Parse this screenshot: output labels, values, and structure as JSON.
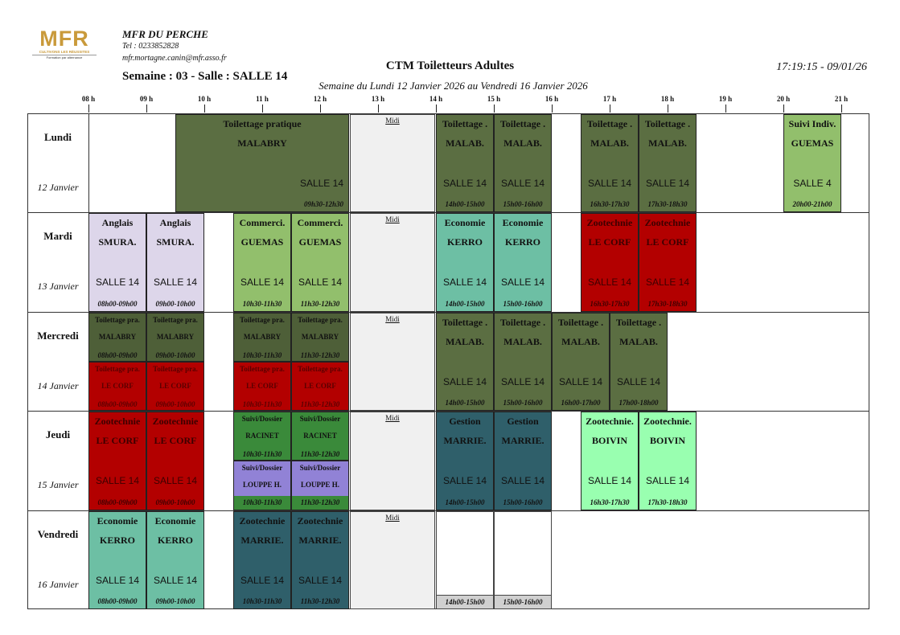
{
  "header": {
    "logo_text": "MFR",
    "logo_tagline": "CULTIVONS LES RÉUSSITES",
    "logo_subline": "Formation par alternance",
    "org_name": "MFR DU PERCHE",
    "tel": "Tel : 0233852828",
    "email": "mfr.mortagne.canin@mfr.asso.fr",
    "week_line": "Semaine : 03 - Salle : SALLE 14",
    "title": "CTM Toiletteurs Adultes",
    "subtitle": "Semaine du Lundi 12 Janvier 2026 au Vendredi 16 Janvier 2026",
    "print_time": "17:19:15 - 09/01/26"
  },
  "hours": [
    "08 h",
    "09 h",
    "10 h",
    "11 h",
    "12 h",
    "13 h",
    "14 h",
    "15 h",
    "16 h",
    "17 h",
    "18 h",
    "19 h",
    "20 h",
    "21 h"
  ],
  "days": [
    {
      "name": "Lundi",
      "date": "12 Janvier"
    },
    {
      "name": "Mardi",
      "date": "13 Janvier"
    },
    {
      "name": "Mercredi",
      "date": "14 Janvier"
    },
    {
      "name": "Jeudi",
      "date": "15 Janvier"
    },
    {
      "name": "Vendredi",
      "date": "16 Janvier"
    }
  ],
  "midi_label": "Midi",
  "colors": {
    "toilettage": "#5b6e42",
    "toilettage_half": "#4e5f38",
    "rouge": "#b30000",
    "anglais": "#ddd6ea",
    "commerce": "#92bf6c",
    "economie": "#6dbfa4",
    "gestion": "#2f5f6a",
    "zootech_vert": "#99ffb0",
    "suivi_vert": "#3a8a3a",
    "suivi_violet": "#9182d6",
    "suivi_guemas": "#92bf6c"
  },
  "events": [
    {
      "day": 0,
      "start": 9.5,
      "end": 12.5,
      "half": "full",
      "title": "Toilettage pratique",
      "teacher": "MALABRY",
      "room": "SALLE 14",
      "time": "09h30-12h30",
      "color": "#5b6e42",
      "wide": true
    },
    {
      "day": 0,
      "start": 14,
      "end": 15,
      "half": "full",
      "title": "Toilettage .",
      "teacher": "MALAB.",
      "room": "SALLE 14",
      "time": "14h00-15h00",
      "color": "#5b6e42"
    },
    {
      "day": 0,
      "start": 15,
      "end": 16,
      "half": "full",
      "title": "Toilettage .",
      "teacher": "MALAB.",
      "room": "SALLE 14",
      "time": "15h00-16h00",
      "color": "#5b6e42"
    },
    {
      "day": 0,
      "start": 16.5,
      "end": 17.5,
      "half": "full",
      "title": "Toilettage .",
      "teacher": "MALAB.",
      "room": "SALLE 14",
      "time": "16h30-17h30",
      "color": "#5b6e42"
    },
    {
      "day": 0,
      "start": 17.5,
      "end": 18.5,
      "half": "full",
      "title": "Toilettage .",
      "teacher": "MALAB.",
      "room": "SALLE 14",
      "time": "17h30-18h30",
      "color": "#5b6e42"
    },
    {
      "day": 0,
      "start": 20,
      "end": 21,
      "half": "full",
      "title": "Suivi Indiv.",
      "teacher": "GUEMAS",
      "room": "SALLE 4",
      "time": "20h00-21h00",
      "color": "#92bf6c"
    },
    {
      "day": 1,
      "start": 8,
      "end": 9,
      "half": "full",
      "title": "Anglais",
      "teacher": "SMURA.",
      "room": "SALLE 14",
      "time": "08h00-09h00",
      "color": "#ddd6ea"
    },
    {
      "day": 1,
      "start": 9,
      "end": 10,
      "half": "full",
      "title": "Anglais",
      "teacher": "SMURA.",
      "room": "SALLE 14",
      "time": "09h00-10h00",
      "color": "#ddd6ea"
    },
    {
      "day": 1,
      "start": 10.5,
      "end": 11.5,
      "half": "full",
      "title": "Commerci.",
      "teacher": "GUEMAS",
      "room": "SALLE 14",
      "time": "10h30-11h30",
      "color": "#92bf6c"
    },
    {
      "day": 1,
      "start": 11.5,
      "end": 12.5,
      "half": "full",
      "title": "Commerci.",
      "teacher": "GUEMAS",
      "room": "SALLE 14",
      "time": "11h30-12h30",
      "color": "#92bf6c"
    },
    {
      "day": 1,
      "start": 14,
      "end": 15,
      "half": "full",
      "title": "Economie",
      "teacher": "KERRO",
      "room": "SALLE 14",
      "time": "14h00-15h00",
      "color": "#6dbfa4"
    },
    {
      "day": 1,
      "start": 15,
      "end": 16,
      "half": "full",
      "title": "Economie",
      "teacher": "KERRO",
      "room": "SALLE 14",
      "time": "15h00-16h00",
      "color": "#6dbfa4"
    },
    {
      "day": 1,
      "start": 16.5,
      "end": 17.5,
      "half": "full",
      "title": "Zootechnie",
      "teacher": "LE CORF",
      "room": "SALLE 14",
      "time": "16h30-17h30",
      "color": "#b30000"
    },
    {
      "day": 1,
      "start": 17.5,
      "end": 18.5,
      "half": "full",
      "title": "Zootechnie",
      "teacher": "LE CORF",
      "room": "SALLE 14",
      "time": "17h30-18h30",
      "color": "#b30000"
    },
    {
      "day": 2,
      "start": 8,
      "end": 9,
      "half": "top",
      "title": "Toilettage pra.",
      "teacher": "MALABRY",
      "time": "08h00-09h00",
      "color": "#4e5f38"
    },
    {
      "day": 2,
      "start": 9,
      "end": 10,
      "half": "top",
      "title": "Toilettage pra.",
      "teacher": "MALABRY",
      "time": "09h00-10h00",
      "color": "#4e5f38"
    },
    {
      "day": 2,
      "start": 10.5,
      "end": 11.5,
      "half": "top",
      "title": "Toilettage pra.",
      "teacher": "MALABRY",
      "time": "10h30-11h30",
      "color": "#4e5f38"
    },
    {
      "day": 2,
      "start": 11.5,
      "end": 12.5,
      "half": "top",
      "title": "Toilettage pra.",
      "teacher": "MALABRY",
      "time": "11h30-12h30",
      "color": "#4e5f38"
    },
    {
      "day": 2,
      "start": 8,
      "end": 9,
      "half": "bottom",
      "title": "Toilettage pra.",
      "teacher": "LE CORF",
      "time": "08h00-09h00",
      "color": "#b30000"
    },
    {
      "day": 2,
      "start": 9,
      "end": 10,
      "half": "bottom",
      "title": "Toilettage pra.",
      "teacher": "LE CORF",
      "time": "09h00-10h00",
      "color": "#b30000"
    },
    {
      "day": 2,
      "start": 10.5,
      "end": 11.5,
      "half": "bottom",
      "title": "Toilettage pra.",
      "teacher": "LE CORF",
      "time": "10h30-11h30",
      "color": "#b30000"
    },
    {
      "day": 2,
      "start": 11.5,
      "end": 12.5,
      "half": "bottom",
      "title": "Toilettage pra.",
      "teacher": "LE CORF",
      "time": "11h30-12h30",
      "color": "#b30000"
    },
    {
      "day": 2,
      "start": 14,
      "end": 15,
      "half": "full",
      "title": "Toilettage .",
      "teacher": "MALAB.",
      "room": "SALLE 14",
      "time": "14h00-15h00",
      "color": "#5b6e42"
    },
    {
      "day": 2,
      "start": 15,
      "end": 16,
      "half": "full",
      "title": "Toilettage .",
      "teacher": "MALAB.",
      "room": "SALLE 14",
      "time": "15h00-16h00",
      "color": "#5b6e42"
    },
    {
      "day": 2,
      "start": 16,
      "end": 17,
      "half": "full",
      "title": "Toilettage .",
      "teacher": "MALAB.",
      "room": "SALLE 14",
      "time": "16h00-17h00",
      "color": "#5b6e42"
    },
    {
      "day": 2,
      "start": 17,
      "end": 18,
      "half": "full",
      "title": "Toilettage .",
      "teacher": "MALAB.",
      "room": "SALLE 14",
      "time": "17h00-18h00",
      "color": "#5b6e42"
    },
    {
      "day": 3,
      "start": 8,
      "end": 9,
      "half": "full",
      "title": "Zootechnie",
      "teacher": "LE CORF",
      "room": "SALLE 14",
      "time": "08h00-09h00",
      "color": "#b30000"
    },
    {
      "day": 3,
      "start": 9,
      "end": 10,
      "half": "full",
      "title": "Zootechnie",
      "teacher": "LE CORF",
      "room": "SALLE 14",
      "time": "09h00-10h00",
      "color": "#b30000"
    },
    {
      "day": 3,
      "start": 10.5,
      "end": 11.5,
      "half": "top",
      "title": "Suivi/Dossier",
      "teacher": "RACINET",
      "time": "10h30-11h30",
      "color": "#3a8a3a"
    },
    {
      "day": 3,
      "start": 11.5,
      "end": 12.5,
      "half": "top",
      "title": "Suivi/Dossier",
      "teacher": "RACINET",
      "time": "11h30-12h30",
      "color": "#3a8a3a"
    },
    {
      "day": 3,
      "start": 10.5,
      "end": 11.5,
      "half": "bottom",
      "title": "Suivi/Dossier",
      "teacher": "LOUPPE H.",
      "time": "10h30-11h30",
      "color": "#9182d6",
      "timecolor": "#3a8a3a"
    },
    {
      "day": 3,
      "start": 11.5,
      "end": 12.5,
      "half": "bottom",
      "title": "Suivi/Dossier",
      "teacher": "LOUPPE H.",
      "time": "11h30-12h30",
      "color": "#9182d6",
      "timecolor": "#3a8a3a"
    },
    {
      "day": 3,
      "start": 14,
      "end": 15,
      "half": "full",
      "title": "Gestion",
      "teacher": "MARRIE.",
      "room": "SALLE 14",
      "time": "14h00-15h00",
      "color": "#2f5f6a"
    },
    {
      "day": 3,
      "start": 15,
      "end": 16,
      "half": "full",
      "title": "Gestion",
      "teacher": "MARRIE.",
      "room": "SALLE 14",
      "time": "15h00-16h00",
      "color": "#2f5f6a"
    },
    {
      "day": 3,
      "start": 16.5,
      "end": 17.5,
      "half": "full",
      "title": "Zootechnie.",
      "teacher": "BOIVIN",
      "room": "SALLE 14",
      "time": "16h30-17h30",
      "color": "#99ffb0"
    },
    {
      "day": 3,
      "start": 17.5,
      "end": 18.5,
      "half": "full",
      "title": "Zootechnie.",
      "teacher": "BOIVIN",
      "room": "SALLE 14",
      "time": "17h30-18h30",
      "color": "#99ffb0"
    },
    {
      "day": 4,
      "start": 8,
      "end": 9,
      "half": "full",
      "title": "Economie",
      "teacher": "KERRO",
      "room": "SALLE 14",
      "time": "08h00-09h00",
      "color": "#6dbfa4"
    },
    {
      "day": 4,
      "start": 9,
      "end": 10,
      "half": "full",
      "title": "Economie",
      "teacher": "KERRO",
      "room": "SALLE 14",
      "time": "09h00-10h00",
      "color": "#6dbfa4"
    },
    {
      "day": 4,
      "start": 10.5,
      "end": 11.5,
      "half": "full",
      "title": "Zootechnie",
      "teacher": "MARRIE.",
      "room": "SALLE 14",
      "time": "10h30-11h30",
      "color": "#2f5f6a"
    },
    {
      "day": 4,
      "start": 11.5,
      "end": 12.5,
      "half": "full",
      "title": "Zootechnie",
      "teacher": "MARRIE.",
      "room": "SALLE 14",
      "time": "11h30-12h30",
      "color": "#2f5f6a"
    },
    {
      "day": 4,
      "start": 14,
      "end": 15,
      "half": "empty",
      "time": "14h00-15h00"
    },
    {
      "day": 4,
      "start": 15,
      "end": 16,
      "half": "empty",
      "time": "15h00-16h00"
    }
  ]
}
